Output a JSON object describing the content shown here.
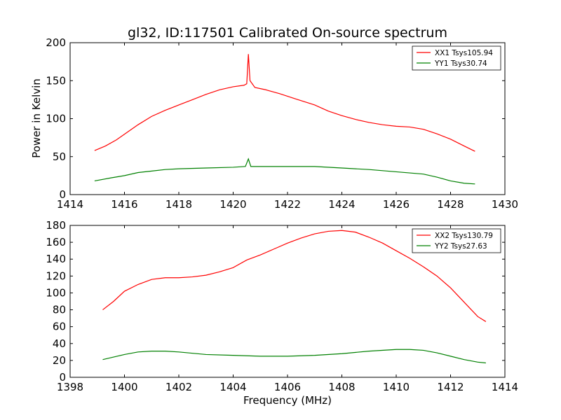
{
  "figure": {
    "title": "gl32, ID:117501 Calibrated On-source spectrum",
    "ylabel": "Power in Kelvin",
    "xlabel": "Frequency (MHz)"
  },
  "chart_data": [
    {
      "type": "line",
      "title": "gl32, ID:117501 Calibrated On-source spectrum",
      "ylabel": "Power in Kelvin",
      "xlabel": "",
      "xlim": [
        1414,
        1430
      ],
      "ylim": [
        0,
        200
      ],
      "xticks": [
        1414,
        1416,
        1418,
        1420,
        1422,
        1424,
        1426,
        1428,
        1430
      ],
      "yticks": [
        0,
        50,
        100,
        150,
        200
      ],
      "legend": "top-right",
      "series": [
        {
          "name": "XX1 Tsys105.94",
          "color": "#ff0000",
          "points": [
            [
              1414.9,
              58
            ],
            [
              1415.3,
              64
            ],
            [
              1415.7,
              72
            ],
            [
              1416.1,
              82
            ],
            [
              1416.5,
              92
            ],
            [
              1417.0,
              103
            ],
            [
              1417.5,
              111
            ],
            [
              1418.0,
              118
            ],
            [
              1418.5,
              125
            ],
            [
              1419.0,
              132
            ],
            [
              1419.5,
              138
            ],
            [
              1420.0,
              142
            ],
            [
              1420.4,
              144
            ],
            [
              1420.5,
              146
            ],
            [
              1420.56,
              185
            ],
            [
              1420.62,
              150
            ],
            [
              1420.8,
              141
            ],
            [
              1421.2,
              138
            ],
            [
              1421.7,
              133
            ],
            [
              1422.3,
              126
            ],
            [
              1423.0,
              118
            ],
            [
              1423.5,
              110
            ],
            [
              1424.0,
              104
            ],
            [
              1424.5,
              99
            ],
            [
              1425.0,
              95
            ],
            [
              1425.5,
              92
            ],
            [
              1426.0,
              90
            ],
            [
              1426.5,
              89
            ],
            [
              1427.0,
              86
            ],
            [
              1427.5,
              80
            ],
            [
              1428.0,
              73
            ],
            [
              1428.5,
              64
            ],
            [
              1428.9,
              57
            ]
          ]
        },
        {
          "name": "YY1 Tsys30.74",
          "color": "#008000",
          "points": [
            [
              1414.9,
              18
            ],
            [
              1415.5,
              22
            ],
            [
              1416.0,
              25
            ],
            [
              1416.5,
              29
            ],
            [
              1417.0,
              31
            ],
            [
              1417.5,
              33
            ],
            [
              1418.0,
              34
            ],
            [
              1419.0,
              35
            ],
            [
              1420.0,
              36
            ],
            [
              1420.45,
              37
            ],
            [
              1420.56,
              47
            ],
            [
              1420.65,
              37
            ],
            [
              1421.0,
              37
            ],
            [
              1422.0,
              37
            ],
            [
              1423.0,
              37
            ],
            [
              1424.0,
              35
            ],
            [
              1425.0,
              33
            ],
            [
              1426.0,
              30
            ],
            [
              1427.0,
              27
            ],
            [
              1427.5,
              23
            ],
            [
              1428.0,
              18
            ],
            [
              1428.5,
              15
            ],
            [
              1428.9,
              14
            ]
          ]
        }
      ]
    },
    {
      "type": "line",
      "title": "",
      "ylabel": "",
      "xlabel": "Frequency (MHz)",
      "xlim": [
        1398,
        1414
      ],
      "ylim": [
        0,
        180
      ],
      "xticks": [
        1398,
        1400,
        1402,
        1404,
        1406,
        1408,
        1410,
        1412,
        1414
      ],
      "yticks": [
        0,
        20,
        40,
        60,
        80,
        100,
        120,
        140,
        160,
        180
      ],
      "legend": "top-right",
      "series": [
        {
          "name": "XX2 Tsys130.79",
          "color": "#ff0000",
          "points": [
            [
              1399.2,
              80
            ],
            [
              1399.6,
              90
            ],
            [
              1400.0,
              102
            ],
            [
              1400.5,
              110
            ],
            [
              1401.0,
              116
            ],
            [
              1401.5,
              118
            ],
            [
              1402.0,
              118
            ],
            [
              1402.5,
              119
            ],
            [
              1403.0,
              121
            ],
            [
              1403.5,
              125
            ],
            [
              1404.0,
              130
            ],
            [
              1404.5,
              139
            ],
            [
              1405.0,
              145
            ],
            [
              1405.5,
              152
            ],
            [
              1406.0,
              159
            ],
            [
              1406.5,
              165
            ],
            [
              1407.0,
              170
            ],
            [
              1407.5,
              173
            ],
            [
              1408.0,
              174
            ],
            [
              1408.5,
              172
            ],
            [
              1409.0,
              166
            ],
            [
              1409.5,
              159
            ],
            [
              1410.0,
              150
            ],
            [
              1410.5,
              141
            ],
            [
              1411.0,
              131
            ],
            [
              1411.5,
              120
            ],
            [
              1412.0,
              106
            ],
            [
              1412.5,
              89
            ],
            [
              1413.0,
              72
            ],
            [
              1413.3,
              66
            ]
          ]
        },
        {
          "name": "YY2 Tsys27.63",
          "color": "#008000",
          "points": [
            [
              1399.2,
              21
            ],
            [
              1399.6,
              24
            ],
            [
              1400.0,
              27
            ],
            [
              1400.5,
              30
            ],
            [
              1401.0,
              31
            ],
            [
              1401.5,
              31
            ],
            [
              1402.0,
              30
            ],
            [
              1403.0,
              27
            ],
            [
              1404.0,
              26
            ],
            [
              1405.0,
              25
            ],
            [
              1406.0,
              25
            ],
            [
              1407.0,
              26
            ],
            [
              1408.0,
              28
            ],
            [
              1409.0,
              31
            ],
            [
              1410.0,
              33
            ],
            [
              1410.5,
              33
            ],
            [
              1411.0,
              32
            ],
            [
              1411.5,
              29
            ],
            [
              1412.0,
              25
            ],
            [
              1412.5,
              21
            ],
            [
              1413.0,
              18
            ],
            [
              1413.3,
              17
            ]
          ]
        }
      ]
    }
  ]
}
